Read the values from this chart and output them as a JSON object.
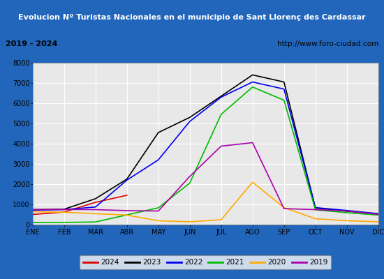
{
  "title": "Evolucion Nº Turistas Nacionales en el municipio de Sant Llorenç des Cardassar",
  "subtitle_left": "2019 - 2024",
  "subtitle_right": "http://www.foro-ciudad.com",
  "xlabel_months": [
    "ENE",
    "FEB",
    "MAR",
    "ABR",
    "MAY",
    "JUN",
    "JUL",
    "AGO",
    "SEP",
    "OCT",
    "NOV",
    "DIC"
  ],
  "ylim": [
    0,
    8000
  ],
  "yticks": [
    0,
    1000,
    2000,
    3000,
    4000,
    5000,
    6000,
    7000,
    8000
  ],
  "series": {
    "2024": {
      "color": "#dd0000",
      "values": [
        500,
        620,
        1100,
        1450,
        null,
        null,
        null,
        null,
        null,
        null,
        null,
        null
      ]
    },
    "2023": {
      "color": "#000000",
      "values": [
        740,
        760,
        1280,
        2250,
        4550,
        5300,
        6350,
        7400,
        7050,
        820,
        660,
        530
      ]
    },
    "2022": {
      "color": "#0000ee",
      "values": [
        710,
        740,
        870,
        2200,
        3200,
        5100,
        6300,
        7050,
        6700,
        840,
        700,
        540
      ]
    },
    "2021": {
      "color": "#00bb00",
      "values": [
        100,
        110,
        130,
        480,
        830,
        2050,
        5450,
        6800,
        6150,
        730,
        590,
        470
      ]
    },
    "2020": {
      "color": "#ffaa00",
      "values": [
        640,
        610,
        540,
        470,
        190,
        140,
        240,
        2100,
        840,
        290,
        190,
        140
      ]
    },
    "2019": {
      "color": "#aa00aa",
      "values": [
        740,
        750,
        740,
        690,
        670,
        2380,
        3880,
        4050,
        790,
        740,
        670,
        510
      ]
    }
  },
  "title_bg_color": "#2266bb",
  "title_text_color": "#ffffff",
  "subtitle_bg_color": "#f0f0f0",
  "plot_bg_color": "#e8e8e8",
  "grid_color": "#ffffff",
  "outer_border_color": "#2266bb",
  "legend_order": [
    "2024",
    "2023",
    "2022",
    "2021",
    "2020",
    "2019"
  ]
}
